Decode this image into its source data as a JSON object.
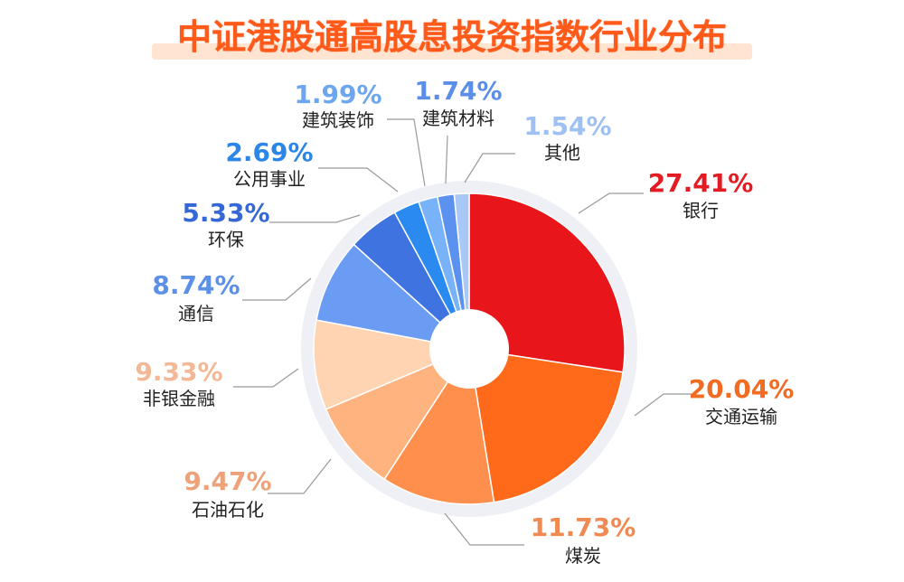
{
  "title": "中证港股通高股息投资指数行业分布",
  "chart_data": {
    "type": "pie",
    "title": "中证港股通高股息投资指数行业分布",
    "slices": [
      {
        "label": "银行",
        "value": 27.41,
        "pct": "27.41%",
        "color": "#e8161b",
        "pctColor": "#e31b23"
      },
      {
        "label": "交通运输",
        "value": 20.04,
        "pct": "20.04%",
        "color": "#ff6a1a",
        "pctColor": "#f26b22"
      },
      {
        "label": "煤炭",
        "value": 11.73,
        "pct": "11.73%",
        "color": "#ff8f4c",
        "pctColor": "#f08a52"
      },
      {
        "label": "石油石化",
        "value": 9.47,
        "pct": "9.47%",
        "color": "#ffb37f",
        "pctColor": "#eea27a"
      },
      {
        "label": "非银金融",
        "value": 9.33,
        "pct": "9.33%",
        "color": "#ffd4b2",
        "pctColor": "#f3b997"
      },
      {
        "label": "通信",
        "value": 8.74,
        "pct": "8.74%",
        "color": "#6a9cf4",
        "pctColor": "#5b8fe8"
      },
      {
        "label": "环保",
        "value": 5.33,
        "pct": "5.33%",
        "color": "#3e73e0",
        "pctColor": "#3567d6"
      },
      {
        "label": "公用事业",
        "value": 2.69,
        "pct": "2.69%",
        "color": "#2b8af0",
        "pctColor": "#2c86e8"
      },
      {
        "label": "建筑装饰",
        "value": 1.99,
        "pct": "1.99%",
        "color": "#78b2f8",
        "pctColor": "#6ba6ee"
      },
      {
        "label": "建筑材料",
        "value": 1.74,
        "pct": "1.74%",
        "color": "#5b92f0",
        "pctColor": "#5b8ee8"
      },
      {
        "label": "其他",
        "value": 1.54,
        "pct": "1.54%",
        "color": "#a9c8f7",
        "pctColor": "#9fc0f3"
      }
    ]
  }
}
